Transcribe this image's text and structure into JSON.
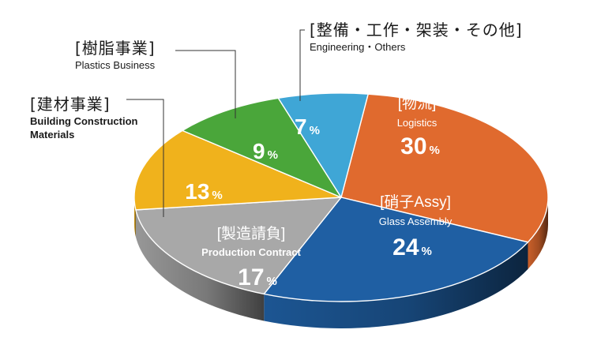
{
  "chart_data": {
    "type": "pie",
    "segments": [
      {
        "jp": "[物流]",
        "en": "Logistics",
        "value": 30,
        "unit": "%",
        "color": "#e06a2e"
      },
      {
        "jp": "[硝子Assy]",
        "en": "Glass Assembly",
        "value": 24,
        "unit": "%",
        "color": "#1f5fa3"
      },
      {
        "jp": "[製造請負]",
        "en": "Production Contract",
        "value": 17,
        "unit": "%",
        "color": "#a8a8a8"
      },
      {
        "jp": "[建材事業]",
        "en": "Building Construction Materials",
        "value": 13,
        "unit": "%",
        "color": "#f0b21c"
      },
      {
        "jp": "[樹脂事業]",
        "en": "Plastics Business",
        "value": 9,
        "unit": "%",
        "color": "#4aa63a"
      },
      {
        "jp": "[整備・工作・架装・その他]",
        "en": "Engineering・Others",
        "value": 7,
        "unit": "%",
        "color": "#3fa6d6"
      }
    ]
  }
}
